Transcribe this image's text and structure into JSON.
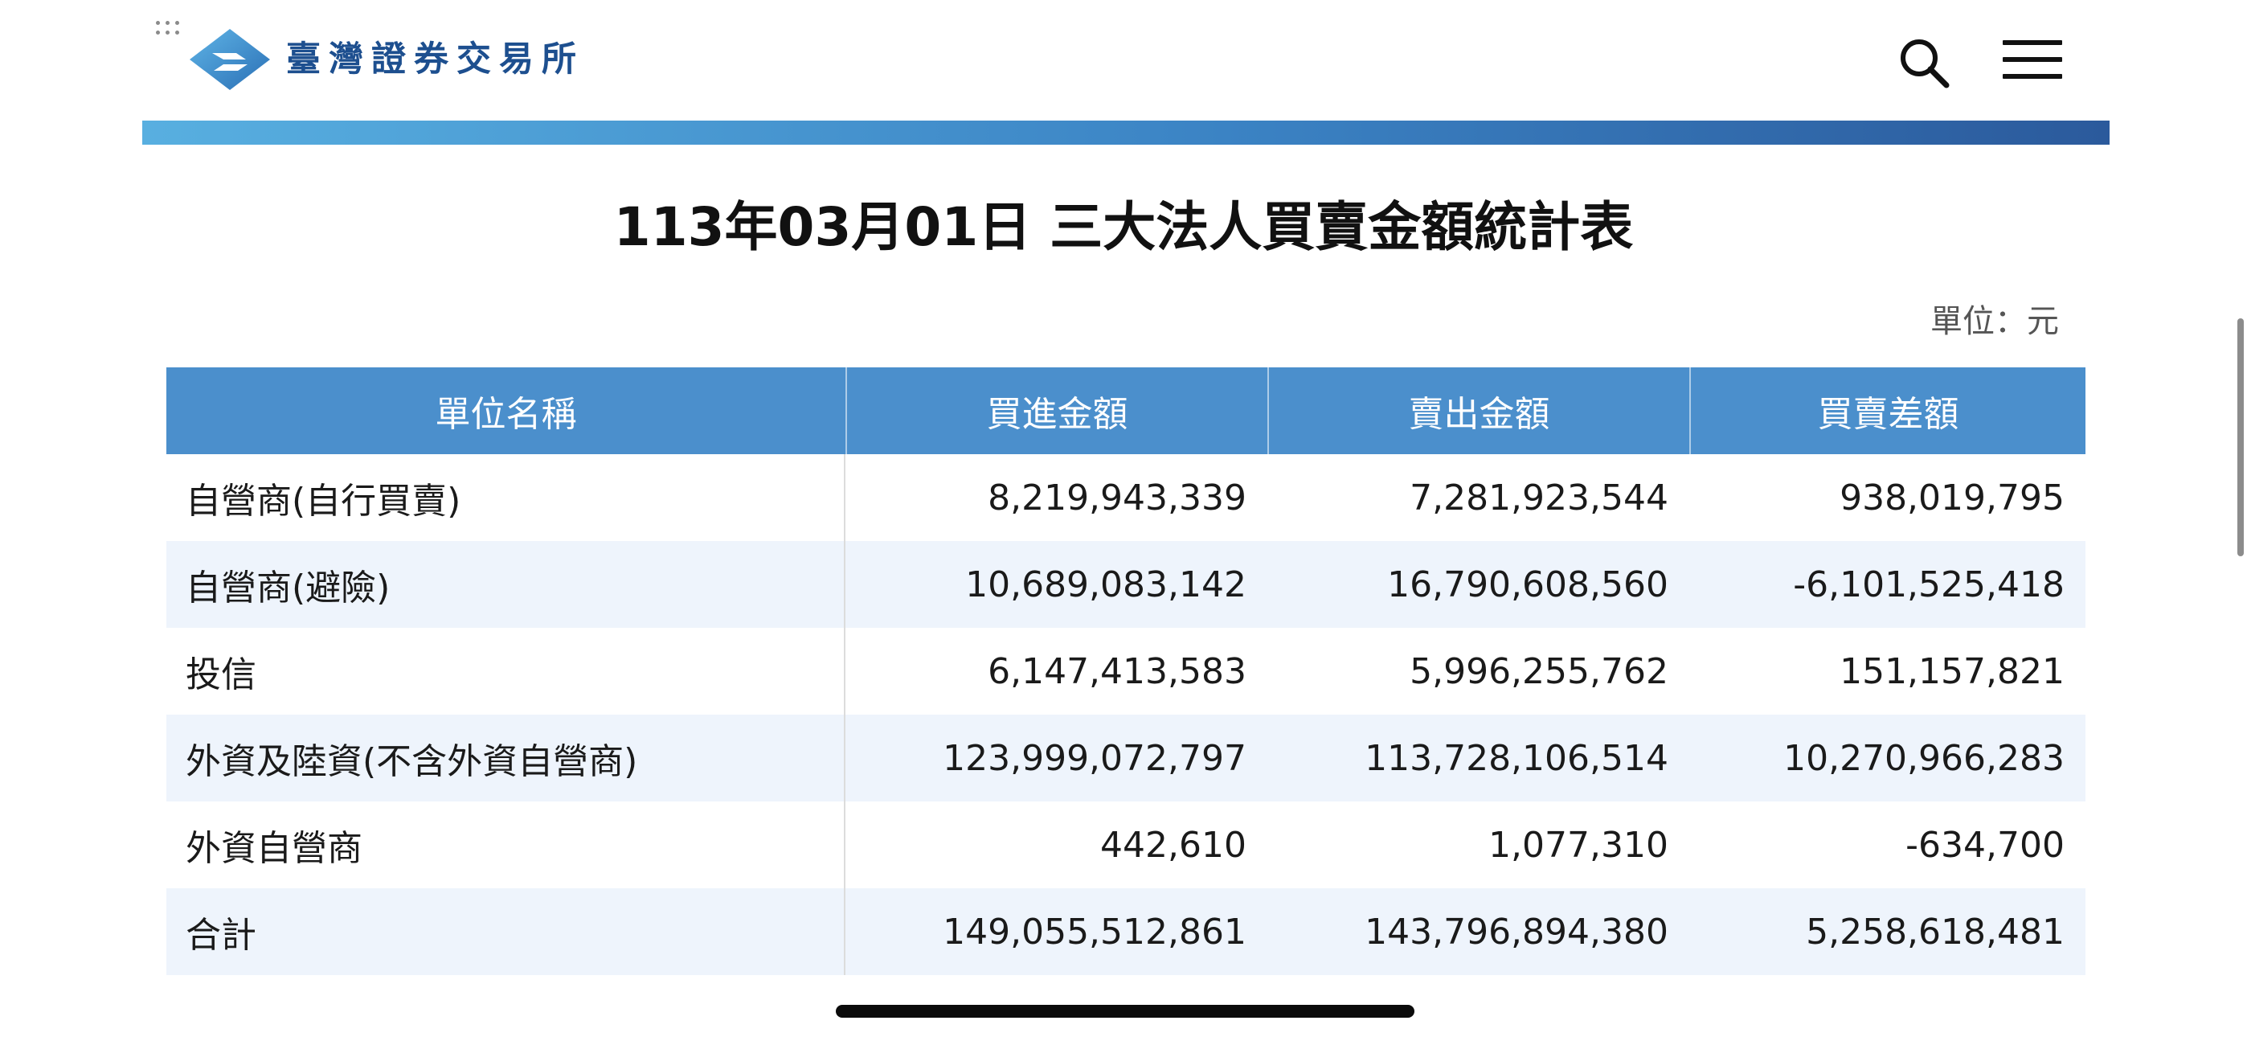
{
  "header": {
    "brand_name": "臺灣證券交易所",
    "logo_icon": "twse-logo-icon",
    "search_icon": "search-icon",
    "menu_icon": "hamburger-menu-icon",
    "accent_colors": [
      "#58afe0",
      "#2b5a9c"
    ]
  },
  "report": {
    "title": "113年03月01日 三大法人買賣金額統計表",
    "unit": "單位：元"
  },
  "table": {
    "columns": [
      "單位名稱",
      "買進金額",
      "賣出金額",
      "買賣差額"
    ],
    "rows": [
      [
        "自營商(自行買賣)",
        "8,219,943,339",
        "7,281,923,544",
        "938,019,795"
      ],
      [
        "自營商(避險)",
        "10,689,083,142",
        "16,790,608,560",
        "-6,101,525,418"
      ],
      [
        "投信",
        "6,147,413,583",
        "5,996,255,762",
        "151,157,821"
      ],
      [
        "外資及陸資(不含外資自營商)",
        "123,999,072,797",
        "113,728,106,514",
        "10,270,966,283"
      ],
      [
        "外資自營商",
        "442,610",
        "1,077,310",
        "-634,700"
      ],
      [
        "合計",
        "149,055,512,861",
        "143,796,894,380",
        "5,258,618,481"
      ]
    ],
    "header_color": "#4b8fcc",
    "alt_row_color": "#eef4fc"
  }
}
